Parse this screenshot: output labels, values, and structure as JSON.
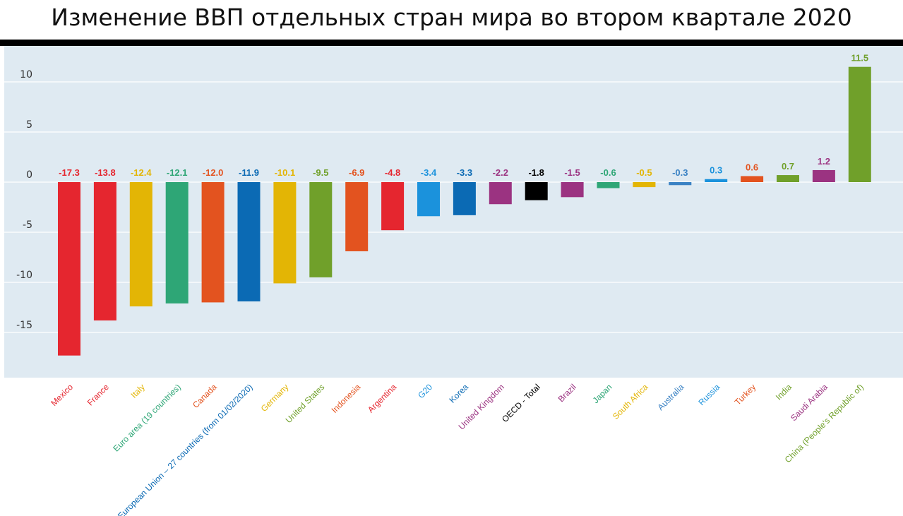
{
  "title": "Изменение ВВП отдельных стран мира во втором квартале 2020",
  "colors": {
    "background": "#dfeaf2",
    "gridline": "#ffffff",
    "tick_text": "#333333",
    "title_bar": "#000000"
  },
  "chart_data": {
    "type": "bar",
    "title": "Изменение ВВП отдельных стран мира во втором квартале 2020",
    "xlabel": "",
    "ylabel": "",
    "ylim": [
      -19.5,
      13.5
    ],
    "yticks": [
      10,
      5,
      0,
      -5,
      -10,
      -15
    ],
    "grid": true,
    "legend": "none",
    "categories": [
      "Mexico",
      "France",
      "Italy",
      "Euro area (19 countries)",
      "Canada",
      "European Union – 27 countries (from 01/02/2020)",
      "Germany",
      "United States",
      "Indonesia",
      "Argentina",
      "G20",
      "Korea",
      "United Kingdom",
      "OECD - Total",
      "Brazil",
      "Japan",
      "South Africa",
      "Australia",
      "Russia",
      "Turkey",
      "India",
      "Saudi Arabia",
      "China (People's Republic of)"
    ],
    "values": [
      -17.3,
      -13.8,
      -12.4,
      -12.1,
      -12.0,
      -11.9,
      -10.1,
      -9.5,
      -6.9,
      -4.8,
      -3.4,
      -3.3,
      -2.2,
      -1.8,
      -1.5,
      -0.6,
      -0.5,
      -0.3,
      0.3,
      0.6,
      0.7,
      1.2,
      11.5
    ],
    "value_labels": [
      "-17.3",
      "-13.8",
      "-12.4",
      "-12.1",
      "-12.0",
      "-11.9",
      "-10.1",
      "-9.5",
      "-6.9",
      "-4.8",
      "-3.4",
      "-3.3",
      "-2.2",
      "-1.8",
      "-1.5",
      "-0.6",
      "-0.5",
      "-0.3",
      "0.3",
      "0.6",
      "0.7",
      "1.2",
      "11.5"
    ],
    "bar_colors": [
      "#e5262f",
      "#e5262f",
      "#e3b505",
      "#2ea676",
      "#e3531f",
      "#0b6ab4",
      "#e3b505",
      "#70a02a",
      "#e3531f",
      "#e5262f",
      "#1b92dc",
      "#0b6ab4",
      "#9b3381",
      "#000000",
      "#9b3381",
      "#2ea676",
      "#e3b505",
      "#3a82c4",
      "#1b92dc",
      "#e3531f",
      "#70a02a",
      "#9b3381",
      "#70a02a"
    ],
    "label_colors": [
      "#e5262f",
      "#e5262f",
      "#e3b505",
      "#2ea676",
      "#e3531f",
      "#0b6ab4",
      "#e3b505",
      "#70a02a",
      "#e3531f",
      "#e5262f",
      "#1b92dc",
      "#0b6ab4",
      "#9b3381",
      "#000000",
      "#9b3381",
      "#2ea676",
      "#e3b505",
      "#3a82c4",
      "#1b92dc",
      "#e3531f",
      "#70a02a",
      "#9b3381",
      "#70a02a"
    ]
  }
}
